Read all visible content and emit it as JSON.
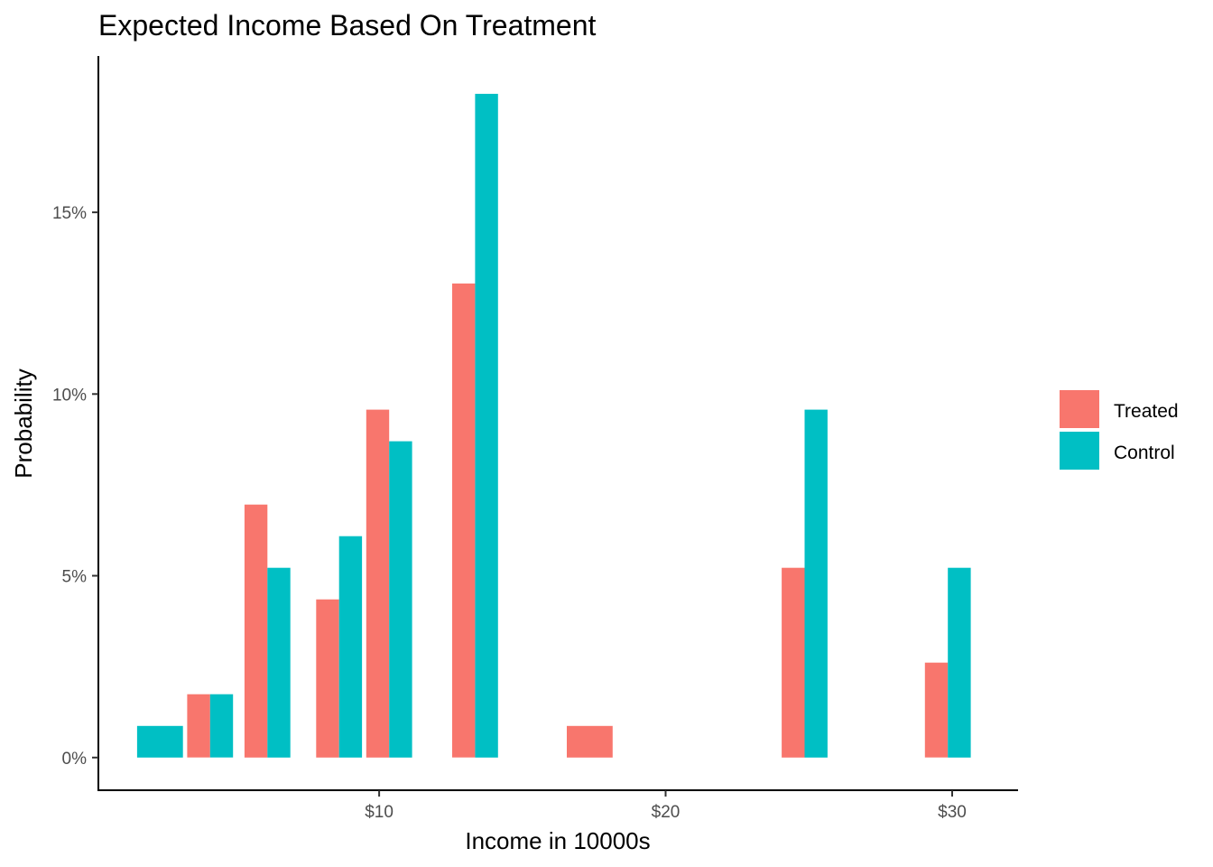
{
  "chart_data": {
    "type": "bar",
    "title": "Expected Income Based On Treatment",
    "xlabel": "Income in 10000s",
    "ylabel": "Probability",
    "xlim": [
      0.2,
      32.3
    ],
    "ylim": [
      -0.9,
      19.3
    ],
    "x_ticks": [
      {
        "value": 10,
        "label": "$10"
      },
      {
        "value": 20,
        "label": "$20"
      },
      {
        "value": 30,
        "label": "$30"
      }
    ],
    "y_ticks": [
      {
        "value": 0,
        "label": "0%"
      },
      {
        "value": 5,
        "label": "5%"
      },
      {
        "value": 10,
        "label": "10%"
      },
      {
        "value": 15,
        "label": "15%"
      }
    ],
    "bar_width": 1.6,
    "legend_position": "right",
    "grid": false,
    "series": [
      {
        "name": "Treated",
        "color": "#F8766D",
        "points": [
          {
            "x": 4.1,
            "y": 1.74,
            "dodge": "left"
          },
          {
            "x": 6.1,
            "y": 6.96,
            "dodge": "left"
          },
          {
            "x": 8.6,
            "y": 4.35,
            "dodge": "left"
          },
          {
            "x": 10.35,
            "y": 9.57,
            "dodge": "left"
          },
          {
            "x": 13.35,
            "y": 13.04,
            "dodge": "left"
          },
          {
            "x": 17.35,
            "y": 0.87,
            "dodge": "full"
          },
          {
            "x": 24.85,
            "y": 5.22,
            "dodge": "left"
          },
          {
            "x": 29.85,
            "y": 2.61,
            "dodge": "left"
          }
        ]
      },
      {
        "name": "Control",
        "color": "#00BFC4",
        "points": [
          {
            "x": 2.35,
            "y": 0.87,
            "dodge": "full"
          },
          {
            "x": 4.1,
            "y": 1.74,
            "dodge": "right"
          },
          {
            "x": 6.1,
            "y": 5.22,
            "dodge": "right"
          },
          {
            "x": 8.6,
            "y": 6.09,
            "dodge": "right"
          },
          {
            "x": 10.35,
            "y": 8.7,
            "dodge": "right"
          },
          {
            "x": 13.35,
            "y": 18.26,
            "dodge": "right"
          },
          {
            "x": 24.85,
            "y": 9.57,
            "dodge": "right"
          },
          {
            "x": 29.85,
            "y": 5.22,
            "dodge": "right"
          }
        ]
      }
    ]
  }
}
